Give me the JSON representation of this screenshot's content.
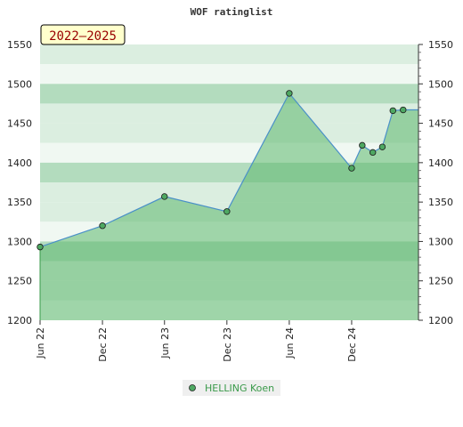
{
  "chart_data": {
    "type": "area",
    "title": "WOF ratinglist",
    "badge": "2022–2025",
    "ylim": [
      1200,
      1550
    ],
    "yticks": [
      1200,
      1250,
      1300,
      1350,
      1400,
      1450,
      1500,
      1550
    ],
    "xlim": [
      "2022-06-01",
      "2025-06-15"
    ],
    "xticks": [
      {
        "label": "Jun 22",
        "date": "2022-06-01"
      },
      {
        "label": "Dec 22",
        "date": "2022-12-01"
      },
      {
        "label": "Jun 23",
        "date": "2023-06-01"
      },
      {
        "label": "Dec 23",
        "date": "2023-12-01"
      },
      {
        "label": "Jun 24",
        "date": "2024-06-01"
      },
      {
        "label": "Dec 24",
        "date": "2024-12-01"
      }
    ],
    "series": [
      {
        "name": "HELLING Koen",
        "color": "#3a9a4a",
        "points": [
          {
            "date": "2022-06-01",
            "value": 1293
          },
          {
            "date": "2022-12-01",
            "value": 1320
          },
          {
            "date": "2023-06-01",
            "value": 1357
          },
          {
            "date": "2023-12-01",
            "value": 1338
          },
          {
            "date": "2024-06-01",
            "value": 1488
          },
          {
            "date": "2024-12-01",
            "value": 1393
          },
          {
            "date": "2025-01-01",
            "value": 1422
          },
          {
            "date": "2025-02-01",
            "value": 1413
          },
          {
            "date": "2025-03-01",
            "value": 1420
          },
          {
            "date": "2025-04-01",
            "value": 1466
          },
          {
            "date": "2025-05-01",
            "value": 1467
          }
        ]
      }
    ],
    "grid": true,
    "legend_position": "bottom"
  },
  "colors": {
    "band_dark": "#b3dcbe",
    "band_light": "#dbeee0",
    "band_white": "#f0f8f2",
    "area_fill": "#5cb86e",
    "line": "#4a90c8",
    "marker": "#4ea862",
    "badge_bg": "#ffffcc",
    "badge_text": "#990000",
    "legend_text": "#3a9a4a"
  }
}
